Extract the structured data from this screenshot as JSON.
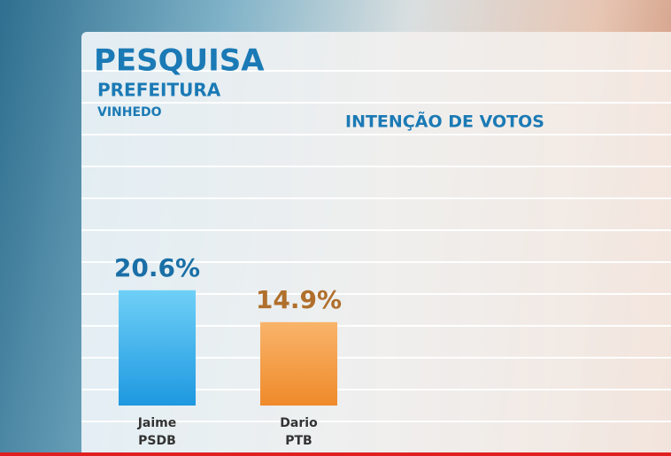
{
  "chart_data": {
    "type": "bar",
    "title": "PESQUISA",
    "subtitle": "PREFEITURA",
    "location": "VINHEDO",
    "axis_title": "INTENÇÃO DE VOTOS",
    "categories": [
      "Jaime",
      "Dario"
    ],
    "parties": [
      "PSDB",
      "PTB"
    ],
    "values": [
      20.6,
      14.9
    ],
    "value_labels": [
      "20.6%",
      "14.9%"
    ],
    "colors": [
      "#29a9ec",
      "#f59637"
    ],
    "label_colors": [
      "#1a6fa6",
      "#b06f2c"
    ],
    "ylim": [
      0,
      50
    ]
  }
}
